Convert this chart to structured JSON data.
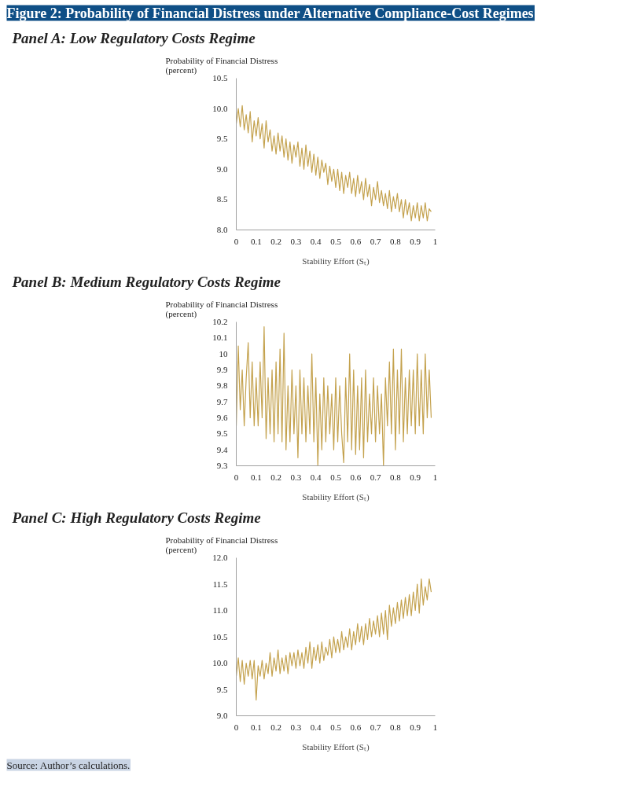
{
  "chart_data": [
    {
      "type": "line",
      "title": "Figure 2: Probability of Financial Distress under Alternative Compliance-Cost Regimes",
      "subtitle": "Panel A: Low Regulatory Costs Regime",
      "ylabel": "Probability of Financial Distress\n(percent)",
      "xlabel": "Stability Effort (Sₜ)",
      "color": "#c4a24e",
      "grid": false,
      "xlim": [
        0,
        1
      ],
      "xticks": [
        0,
        0.1,
        0.2,
        0.3,
        0.4,
        0.5,
        0.6,
        0.7,
        0.8,
        0.9,
        1
      ],
      "ylim": [
        8,
        10.5
      ],
      "yticks": [
        {
          "value": 8,
          "label": "8.0"
        },
        {
          "value": 8.5,
          "label": "8.5"
        },
        {
          "value": 9,
          "label": "9.0"
        },
        {
          "value": 9.5,
          "label": "9.5"
        },
        {
          "value": 10,
          "label": "10.0"
        },
        {
          "value": 10.5,
          "label": "10.5"
        }
      ],
      "x": [
        0,
        0.01,
        0.02,
        0.03,
        0.04,
        0.05,
        0.06,
        0.07,
        0.08,
        0.09,
        0.1,
        0.11,
        0.12,
        0.13,
        0.14,
        0.15,
        0.16,
        0.17,
        0.18,
        0.19,
        0.2,
        0.21,
        0.22,
        0.23,
        0.24,
        0.25,
        0.26,
        0.27,
        0.28,
        0.29,
        0.3,
        0.31,
        0.32,
        0.33,
        0.34,
        0.35,
        0.36,
        0.37,
        0.38,
        0.39,
        0.4,
        0.41,
        0.42,
        0.43,
        0.44,
        0.45,
        0.46,
        0.47,
        0.48,
        0.49,
        0.5,
        0.51,
        0.52,
        0.53,
        0.54,
        0.55,
        0.56,
        0.57,
        0.58,
        0.59,
        0.6,
        0.61,
        0.62,
        0.63,
        0.64,
        0.65,
        0.66,
        0.67,
        0.68,
        0.69,
        0.7,
        0.71,
        0.72,
        0.73,
        0.74,
        0.75,
        0.76,
        0.77,
        0.78,
        0.79,
        0.8,
        0.81,
        0.82,
        0.83,
        0.84,
        0.85,
        0.86,
        0.87,
        0.88,
        0.89,
        0.9,
        0.91,
        0.92,
        0.93,
        0.94,
        0.95,
        0.96,
        0.97,
        0.98
      ],
      "values": [
        9.75,
        10.0,
        9.7,
        10.05,
        9.65,
        9.9,
        9.6,
        9.95,
        9.45,
        9.8,
        9.55,
        9.85,
        9.5,
        9.75,
        9.35,
        9.8,
        9.45,
        9.65,
        9.3,
        9.55,
        9.25,
        9.6,
        9.3,
        9.55,
        9.2,
        9.5,
        9.15,
        9.45,
        9.1,
        9.4,
        9.2,
        9.45,
        9.05,
        9.35,
        9.0,
        9.4,
        9.05,
        9.3,
        8.95,
        9.25,
        8.9,
        9.2,
        8.85,
        9.15,
        8.95,
        9.1,
        8.75,
        9.05,
        8.8,
        9.0,
        8.7,
        9.0,
        8.65,
        8.95,
        8.6,
        8.9,
        8.7,
        8.95,
        8.6,
        8.85,
        8.55,
        8.9,
        8.6,
        8.8,
        8.5,
        8.85,
        8.55,
        8.75,
        8.4,
        8.7,
        8.5,
        8.8,
        8.45,
        8.65,
        8.4,
        8.6,
        8.35,
        8.65,
        8.3,
        8.55,
        8.35,
        8.6,
        8.3,
        8.5,
        8.2,
        8.5,
        8.25,
        8.45,
        8.15,
        8.4,
        8.2,
        8.45,
        8.15,
        8.4,
        8.2,
        8.45,
        8.15,
        8.35,
        8.3
      ]
    },
    {
      "type": "line",
      "title": "Panel B: Medium Regulatory Costs Regime",
      "ylabel": "Probability of Financial Distress\n(percent)",
      "xlabel": "Stability Effort (Sₜ)",
      "color": "#c4a24e",
      "grid": false,
      "xlim": [
        0,
        1
      ],
      "xticks": [
        0,
        0.1,
        0.2,
        0.3,
        0.4,
        0.5,
        0.6,
        0.7,
        0.8,
        0.9,
        1
      ],
      "ylim": [
        9.3,
        10.2
      ],
      "yticks": [
        9.3,
        9.4,
        9.5,
        9.6,
        9.7,
        9.8,
        9.9,
        10,
        10.1,
        10.2
      ],
      "x": [
        0,
        0.01,
        0.02,
        0.03,
        0.04,
        0.05,
        0.06,
        0.07,
        0.08,
        0.09,
        0.1,
        0.11,
        0.12,
        0.13,
        0.14,
        0.15,
        0.16,
        0.17,
        0.18,
        0.19,
        0.2,
        0.21,
        0.22,
        0.23,
        0.24,
        0.25,
        0.26,
        0.27,
        0.28,
        0.29,
        0.3,
        0.31,
        0.32,
        0.33,
        0.34,
        0.35,
        0.36,
        0.37,
        0.38,
        0.39,
        0.4,
        0.41,
        0.42,
        0.43,
        0.44,
        0.45,
        0.46,
        0.47,
        0.48,
        0.49,
        0.5,
        0.51,
        0.52,
        0.53,
        0.54,
        0.55,
        0.56,
        0.57,
        0.58,
        0.59,
        0.6,
        0.61,
        0.62,
        0.63,
        0.64,
        0.65,
        0.66,
        0.67,
        0.68,
        0.69,
        0.7,
        0.71,
        0.72,
        0.73,
        0.74,
        0.75,
        0.76,
        0.77,
        0.78,
        0.79,
        0.8,
        0.81,
        0.82,
        0.83,
        0.84,
        0.85,
        0.86,
        0.87,
        0.88,
        0.89,
        0.9,
        0.91,
        0.92,
        0.93,
        0.94,
        0.95,
        0.96,
        0.97,
        0.98
      ],
      "values": [
        9.55,
        10.05,
        9.65,
        9.9,
        9.55,
        9.85,
        10.07,
        9.6,
        9.95,
        9.55,
        9.85,
        9.55,
        9.95,
        9.6,
        10.17,
        9.47,
        9.85,
        9.5,
        9.9,
        9.45,
        9.95,
        9.5,
        10.03,
        9.45,
        10.13,
        9.4,
        9.8,
        9.45,
        9.9,
        9.5,
        9.8,
        9.35,
        9.9,
        9.5,
        9.85,
        9.45,
        9.8,
        9.5,
        10.0,
        9.45,
        9.85,
        9.3,
        9.75,
        9.4,
        9.85,
        9.45,
        9.8,
        9.5,
        9.75,
        9.4,
        9.85,
        9.45,
        9.8,
        9.5,
        9.32,
        9.85,
        9.45,
        10.0,
        9.4,
        9.9,
        9.37,
        9.8,
        9.4,
        9.85,
        9.35,
        9.9,
        9.45,
        9.75,
        9.5,
        9.85,
        9.45,
        9.8,
        9.5,
        9.75,
        9.3,
        9.85,
        9.55,
        9.95,
        9.5,
        10.03,
        9.4,
        9.9,
        9.5,
        10.03,
        9.45,
        9.85,
        9.5,
        9.9,
        9.55,
        9.9,
        9.5,
        10.0,
        9.55,
        9.9,
        9.5,
        10.0,
        9.6,
        9.9,
        9.6
      ]
    },
    {
      "type": "line",
      "title": "Panel C: High Regulatory Costs Regime",
      "ylabel": "Probability of Financial Distress\n(percent)",
      "xlabel": "Stability Effort (Sₜ)",
      "color": "#c4a24e",
      "grid": false,
      "xlim": [
        0,
        1
      ],
      "xticks": [
        0,
        0.1,
        0.2,
        0.3,
        0.4,
        0.5,
        0.6,
        0.7,
        0.8,
        0.9,
        1
      ],
      "ylim": [
        9,
        12
      ],
      "yticks": [
        {
          "value": 9,
          "label": "9.0"
        },
        {
          "value": 9.5,
          "label": "9.5"
        },
        {
          "value": 10,
          "label": "10.0"
        },
        {
          "value": 10.5,
          "label": "10.5"
        },
        {
          "value": 11,
          "label": "11.0"
        },
        {
          "value": 11.5,
          "label": "11.5"
        },
        {
          "value": 12,
          "label": "12.0"
        }
      ],
      "x": [
        0,
        0.01,
        0.02,
        0.03,
        0.04,
        0.05,
        0.06,
        0.07,
        0.08,
        0.09,
        0.1,
        0.11,
        0.12,
        0.13,
        0.14,
        0.15,
        0.16,
        0.17,
        0.18,
        0.19,
        0.2,
        0.21,
        0.22,
        0.23,
        0.24,
        0.25,
        0.26,
        0.27,
        0.28,
        0.29,
        0.3,
        0.31,
        0.32,
        0.33,
        0.34,
        0.35,
        0.36,
        0.37,
        0.38,
        0.39,
        0.4,
        0.41,
        0.42,
        0.43,
        0.44,
        0.45,
        0.46,
        0.47,
        0.48,
        0.49,
        0.5,
        0.51,
        0.52,
        0.53,
        0.54,
        0.55,
        0.56,
        0.57,
        0.58,
        0.59,
        0.6,
        0.61,
        0.62,
        0.63,
        0.64,
        0.65,
        0.66,
        0.67,
        0.68,
        0.69,
        0.7,
        0.71,
        0.72,
        0.73,
        0.74,
        0.75,
        0.76,
        0.77,
        0.78,
        0.79,
        0.8,
        0.81,
        0.82,
        0.83,
        0.84,
        0.85,
        0.86,
        0.87,
        0.88,
        0.89,
        0.9,
        0.91,
        0.92,
        0.93,
        0.94,
        0.95,
        0.96,
        0.97,
        0.98
      ],
      "values": [
        9.75,
        10.1,
        9.65,
        10.05,
        9.6,
        10.0,
        9.75,
        10.05,
        9.7,
        10.05,
        9.3,
        9.95,
        9.75,
        10.05,
        9.7,
        10.0,
        9.8,
        10.2,
        9.75,
        10.1,
        9.85,
        10.25,
        9.8,
        10.1,
        9.85,
        10.15,
        9.8,
        10.2,
        9.95,
        10.2,
        9.9,
        10.25,
        9.95,
        10.2,
        9.9,
        10.3,
        10.0,
        10.4,
        9.9,
        10.3,
        10.05,
        10.35,
        10.0,
        10.4,
        10.05,
        10.3,
        10.15,
        10.45,
        10.1,
        10.5,
        10.2,
        10.45,
        10.2,
        10.6,
        10.25,
        10.5,
        10.3,
        10.65,
        10.25,
        10.6,
        10.35,
        10.75,
        10.4,
        10.7,
        10.35,
        10.75,
        10.45,
        10.85,
        10.5,
        10.8,
        10.55,
        10.9,
        10.5,
        10.95,
        10.55,
        11.0,
        10.45,
        11.1,
        10.7,
        11.05,
        10.75,
        11.15,
        10.8,
        11.2,
        10.85,
        11.25,
        10.9,
        11.3,
        10.9,
        11.35,
        11.0,
        11.5,
        10.95,
        11.6,
        11.1,
        11.45,
        11.2,
        11.6,
        11.35
      ],
      "annotations": [
        "Source: Author’s calculations."
      ]
    }
  ]
}
